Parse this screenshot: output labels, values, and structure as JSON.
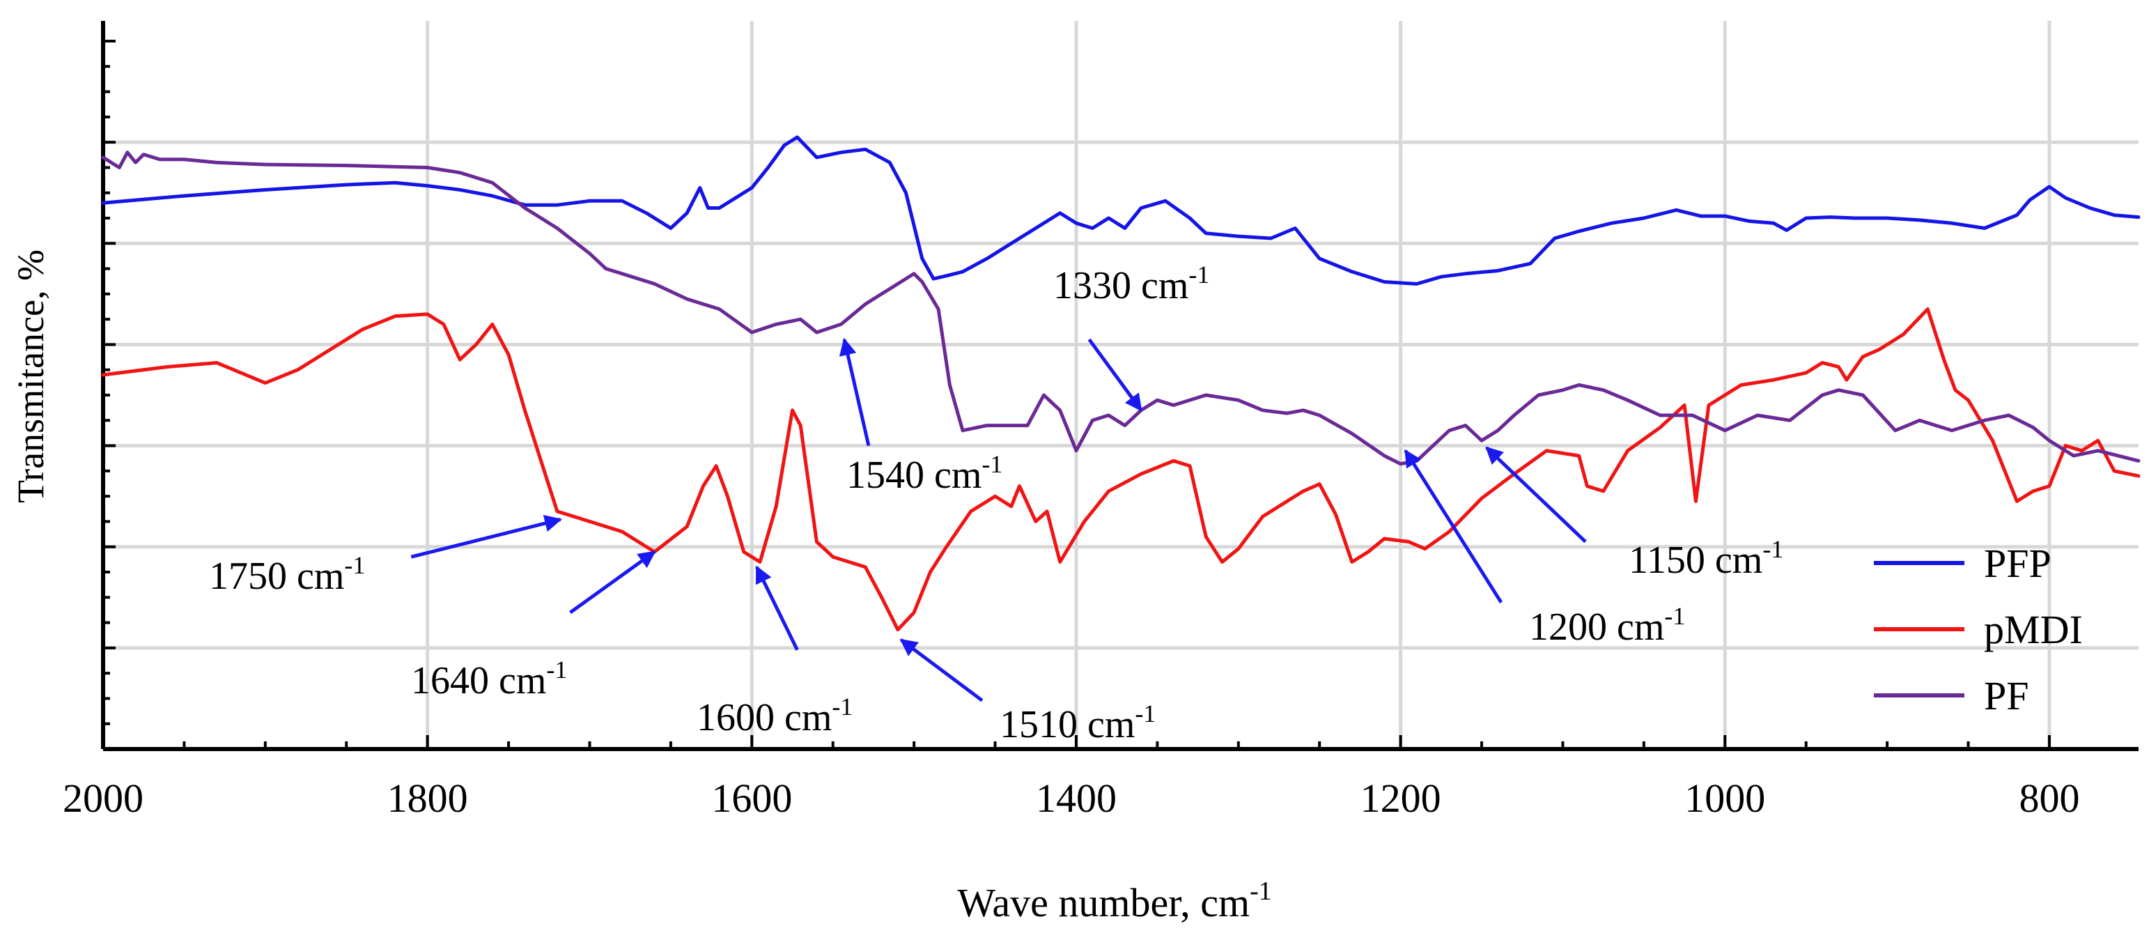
{
  "chart_data": {
    "type": "line",
    "title": "",
    "xlabel": "Wave number, cm",
    "xlabel_sup": "-1",
    "ylabel": "Transmitance, %",
    "xlim": [
      2000,
      745
    ],
    "x_reversed": true,
    "ylim": [
      0,
      7.2
    ],
    "grid": true,
    "legend_position": "bottom-right",
    "xticks": [
      2000,
      1800,
      1600,
      1400,
      1200,
      1000,
      800
    ],
    "xtick_labels": [
      "2000",
      "1800",
      "1600",
      "1400",
      "1200",
      "1000",
      "800"
    ],
    "colors": {
      "PFP": "#1414e6",
      "pMDI": "#f01414",
      "PF": "#6a2a96",
      "arrow": "#1a1af0",
      "grid": "#d8d8d8"
    },
    "series": [
      {
        "name": "PFP",
        "x": [
          2000,
          1950,
          1900,
          1850,
          1820,
          1800,
          1780,
          1760,
          1740,
          1720,
          1700,
          1680,
          1665,
          1650,
          1640,
          1632,
          1627,
          1620,
          1600,
          1590,
          1580,
          1572,
          1560,
          1545,
          1530,
          1515,
          1505,
          1495,
          1488,
          1480,
          1470,
          1455,
          1440,
          1425,
          1410,
          1400,
          1390,
          1380,
          1370,
          1360,
          1345,
          1330,
          1320,
          1300,
          1280,
          1265,
          1250,
          1230,
          1210,
          1190,
          1175,
          1160,
          1140,
          1120,
          1105,
          1090,
          1070,
          1050,
          1030,
          1015,
          1000,
          985,
          970,
          962,
          950,
          935,
          920,
          900,
          880,
          860,
          840,
          820,
          812,
          800,
          790,
          775,
          760,
          745
        ],
        "values": [
          5.4,
          5.47,
          5.53,
          5.58,
          5.6,
          5.57,
          5.53,
          5.47,
          5.38,
          5.38,
          5.42,
          5.42,
          5.3,
          5.15,
          5.3,
          5.55,
          5.35,
          5.35,
          5.55,
          5.75,
          5.97,
          6.05,
          5.85,
          5.9,
          5.93,
          5.8,
          5.5,
          4.85,
          4.65,
          4.68,
          4.72,
          4.85,
          5.0,
          5.15,
          5.3,
          5.2,
          5.15,
          5.25,
          5.15,
          5.35,
          5.42,
          5.25,
          5.1,
          5.07,
          5.05,
          5.15,
          4.85,
          4.72,
          4.62,
          4.6,
          4.67,
          4.7,
          4.73,
          4.8,
          5.05,
          5.12,
          5.2,
          5.25,
          5.33,
          5.27,
          5.27,
          5.22,
          5.2,
          5.13,
          5.25,
          5.26,
          5.25,
          5.25,
          5.23,
          5.2,
          5.15,
          5.28,
          5.43,
          5.56,
          5.45,
          5.35,
          5.28,
          5.26
        ]
      },
      {
        "name": "pMDI",
        "x": [
          2000,
          1960,
          1930,
          1900,
          1880,
          1860,
          1840,
          1820,
          1800,
          1790,
          1780,
          1770,
          1760,
          1750,
          1740,
          1730,
          1720,
          1700,
          1680,
          1660,
          1640,
          1630,
          1622,
          1615,
          1605,
          1595,
          1585,
          1575,
          1570,
          1560,
          1550,
          1540,
          1530,
          1520,
          1510,
          1500,
          1490,
          1480,
          1465,
          1450,
          1440,
          1435,
          1425,
          1418,
          1410,
          1395,
          1380,
          1360,
          1340,
          1330,
          1320,
          1310,
          1300,
          1285,
          1270,
          1260,
          1250,
          1240,
          1230,
          1220,
          1210,
          1195,
          1185,
          1170,
          1150,
          1130,
          1110,
          1090,
          1085,
          1075,
          1060,
          1040,
          1025,
          1018,
          1010,
          990,
          970,
          950,
          940,
          930,
          925,
          915,
          905,
          890,
          875,
          865,
          858,
          850,
          835,
          820,
          810,
          800,
          790,
          780,
          770,
          760,
          745
        ],
        "values": [
          3.7,
          3.78,
          3.82,
          3.62,
          3.75,
          3.95,
          4.15,
          4.28,
          4.3,
          4.2,
          3.85,
          4.0,
          4.2,
          3.9,
          3.35,
          2.85,
          2.35,
          2.25,
          2.15,
          1.95,
          2.2,
          2.6,
          2.8,
          2.5,
          1.95,
          1.85,
          2.4,
          3.35,
          3.2,
          2.05,
          1.9,
          1.85,
          1.8,
          1.5,
          1.18,
          1.35,
          1.75,
          2.0,
          2.35,
          2.5,
          2.4,
          2.6,
          2.25,
          2.35,
          1.85,
          2.25,
          2.55,
          2.72,
          2.85,
          2.8,
          2.1,
          1.85,
          1.98,
          2.3,
          2.45,
          2.55,
          2.62,
          2.32,
          1.85,
          1.95,
          2.08,
          2.05,
          1.98,
          2.15,
          2.48,
          2.72,
          2.95,
          2.9,
          2.6,
          2.55,
          2.95,
          3.18,
          3.4,
          2.45,
          3.4,
          3.6,
          3.65,
          3.72,
          3.82,
          3.78,
          3.65,
          3.88,
          3.95,
          4.1,
          4.35,
          3.85,
          3.55,
          3.45,
          3.05,
          2.45,
          2.55,
          2.6,
          3.0,
          2.95,
          3.05,
          2.75,
          2.7
        ]
      },
      {
        "name": "PF",
        "x": [
          2000,
          1990,
          1985,
          1980,
          1975,
          1965,
          1950,
          1930,
          1900,
          1850,
          1800,
          1780,
          1760,
          1740,
          1720,
          1700,
          1690,
          1680,
          1660,
          1640,
          1620,
          1600,
          1585,
          1570,
          1560,
          1545,
          1530,
          1515,
          1500,
          1495,
          1485,
          1478,
          1470,
          1455,
          1440,
          1430,
          1420,
          1410,
          1400,
          1390,
          1380,
          1370,
          1360,
          1350,
          1340,
          1320,
          1300,
          1285,
          1270,
          1260,
          1250,
          1230,
          1210,
          1200,
          1190,
          1180,
          1170,
          1160,
          1150,
          1140,
          1130,
          1115,
          1100,
          1090,
          1075,
          1060,
          1040,
          1020,
          1000,
          980,
          960,
          940,
          930,
          915,
          895,
          880,
          870,
          860,
          840,
          825,
          810,
          800,
          785,
          770,
          745
        ],
        "values": [
          5.85,
          5.75,
          5.9,
          5.8,
          5.88,
          5.83,
          5.83,
          5.8,
          5.78,
          5.77,
          5.75,
          5.7,
          5.6,
          5.35,
          5.15,
          4.9,
          4.75,
          4.7,
          4.6,
          4.45,
          4.35,
          4.12,
          4.2,
          4.25,
          4.12,
          4.2,
          4.4,
          4.55,
          4.7,
          4.62,
          4.35,
          3.6,
          3.15,
          3.2,
          3.2,
          3.2,
          3.5,
          3.35,
          2.95,
          3.25,
          3.3,
          3.2,
          3.35,
          3.45,
          3.4,
          3.5,
          3.45,
          3.35,
          3.32,
          3.35,
          3.3,
          3.12,
          2.9,
          2.82,
          2.85,
          3.0,
          3.15,
          3.2,
          3.05,
          3.15,
          3.3,
          3.5,
          3.55,
          3.6,
          3.55,
          3.45,
          3.3,
          3.3,
          3.15,
          3.3,
          3.25,
          3.5,
          3.55,
          3.5,
          3.15,
          3.25,
          3.2,
          3.15,
          3.25,
          3.3,
          3.18,
          3.05,
          2.9,
          2.95,
          2.85
        ]
      }
    ],
    "annotations": [
      {
        "label": "1750 cm",
        "sup": "-1",
        "tail": [
          1810,
          1.9
        ],
        "head": [
          1718,
          2.27
        ]
      },
      {
        "label": "1640 cm",
        "sup": "-1",
        "tail": [
          1712,
          1.35
        ],
        "head": [
          1660,
          1.95
        ]
      },
      {
        "label": "1600  cm",
        "sup": "-1",
        "tail": [
          1572,
          0.98
        ],
        "head": [
          1597,
          1.8
        ]
      },
      {
        "label": "1510  cm",
        "sup": "-1",
        "tail": [
          1458,
          0.48
        ],
        "head": [
          1508,
          1.08
        ]
      },
      {
        "label": "1540  cm",
        "sup": "-1",
        "tail": [
          1528,
          3.0
        ],
        "head": [
          1543,
          4.05
        ]
      },
      {
        "label": "1330  cm",
        "sup": "-1",
        "tail": [
          1392,
          4.05
        ],
        "head": [
          1360,
          3.35
        ]
      },
      {
        "label": "1200  cm",
        "sup": "-1",
        "tail": [
          1138,
          1.45
        ],
        "head": [
          1197,
          2.95
        ]
      },
      {
        "label": "1150  cm",
        "sup": "-1",
        "tail": [
          1086,
          2.05
        ],
        "head": [
          1147,
          2.98
        ]
      }
    ]
  }
}
